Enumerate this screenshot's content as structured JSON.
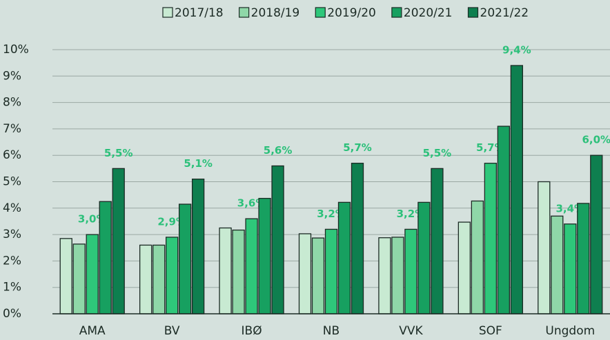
{
  "chart_data": {
    "type": "bar",
    "categories": [
      "AMA",
      "BV",
      "IBØ",
      "NB",
      "VVK",
      "SOF",
      "Ungdom"
    ],
    "series": [
      {
        "name": "2017/18",
        "color": "#c8ead2",
        "values": [
          2.85,
          2.6,
          3.25,
          3.03,
          2.88,
          3.47,
          5.0
        ]
      },
      {
        "name": "2018/19",
        "color": "#8fd7a8",
        "values": [
          2.64,
          2.6,
          3.17,
          2.87,
          2.9,
          4.27,
          3.7
        ]
      },
      {
        "name": "2019/20",
        "color": "#2ec77a",
        "values": [
          3.0,
          2.9,
          3.6,
          3.2,
          3.2,
          5.7,
          3.4
        ],
        "value_labels": [
          "3,0%",
          "2,9%",
          "3,6%",
          "3,2%",
          "3,2%",
          "5,7%",
          "3,4%"
        ]
      },
      {
        "name": "2020/21",
        "color": "#17a060",
        "values": [
          4.25,
          4.15,
          4.37,
          4.22,
          4.22,
          7.1,
          4.18
        ]
      },
      {
        "name": "2021/22",
        "color": "#0e7f4f",
        "values": [
          5.5,
          5.1,
          5.6,
          5.7,
          5.5,
          9.4,
          6.0
        ],
        "value_labels": [
          "5,5%",
          "5,1%",
          "5,6%",
          "5,7%",
          "5,5%",
          "9,4%",
          "6,0%"
        ]
      }
    ],
    "ylim": [
      0,
      10
    ],
    "yticks": [
      {
        "value": 0,
        "label": "0%"
      },
      {
        "value": 1,
        "label": "1%"
      },
      {
        "value": 2,
        "label": "2%"
      },
      {
        "value": 3,
        "label": "3%"
      },
      {
        "value": 4,
        "label": "4%"
      },
      {
        "value": 5,
        "label": "5%"
      },
      {
        "value": 6,
        "label": "6%"
      },
      {
        "value": 7,
        "label": "7%"
      },
      {
        "value": 8,
        "label": "8%"
      },
      {
        "value": 9,
        "label": "9%"
      },
      {
        "value": 10,
        "label": "10%"
      }
    ],
    "grid": true,
    "legend": "top"
  }
}
